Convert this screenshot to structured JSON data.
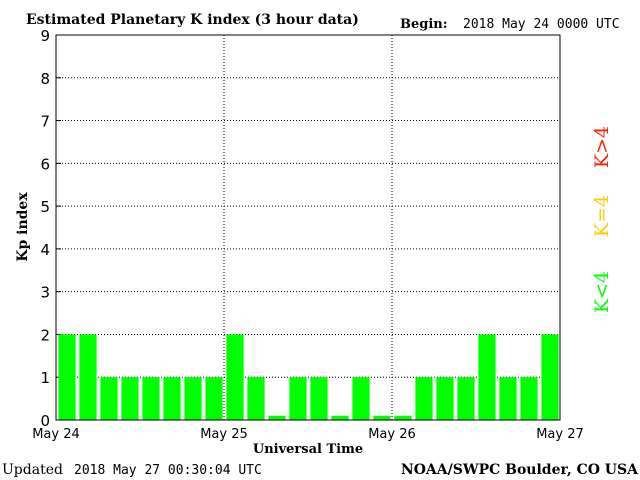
{
  "chart_data": {
    "type": "bar",
    "title": "Estimated Planetary K index (3 hour data)",
    "begin_label": "Begin:",
    "begin_value": "2018 May 24 0000 UTC",
    "xlabel": "Universal Time",
    "ylabel": "Kp index",
    "ylim": [
      0,
      9
    ],
    "yticks": [
      "0",
      "1",
      "2",
      "3",
      "4",
      "5",
      "6",
      "7",
      "8",
      "9"
    ],
    "xtick_labels": [
      "May 24",
      "May 25",
      "May 26",
      "May 27"
    ],
    "grid": true,
    "values": [
      2,
      2,
      1,
      1,
      1,
      1,
      1,
      1,
      2,
      1,
      0.1,
      1,
      1,
      0.1,
      1,
      0.1,
      0.1,
      1,
      1,
      1,
      2,
      1,
      1,
      2
    ],
    "bar_color": "#00ff00",
    "legend": [
      {
        "label": "K<4",
        "color": "#00ff00"
      },
      {
        "label": "K=4",
        "color": "#ffcc00"
      },
      {
        "label": "K>4",
        "color": "#ff2200"
      }
    ]
  },
  "footer": {
    "updated_label": "Updated",
    "updated_value": "2018 May 27 00:30:04 UTC",
    "source": "NOAA/SWPC Boulder, CO USA"
  }
}
